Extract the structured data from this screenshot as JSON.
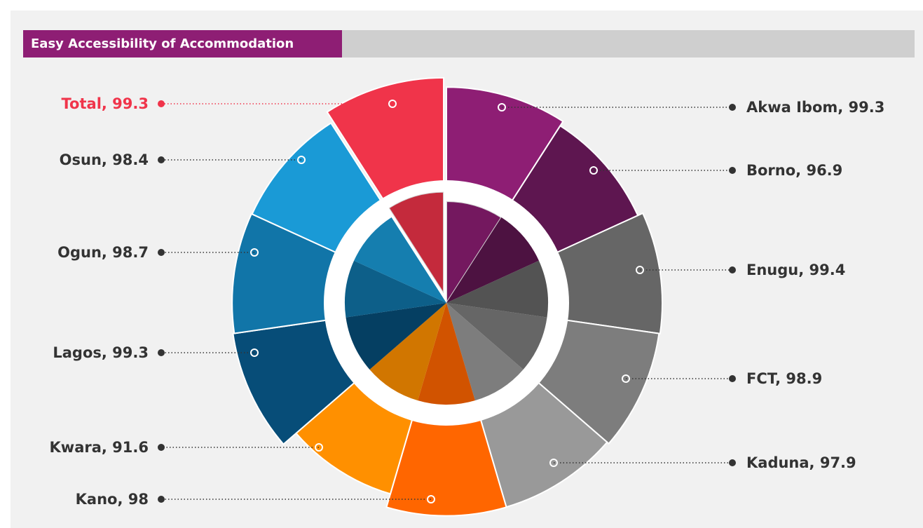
{
  "chart_data": {
    "type": "pie",
    "title": "Easy Accessibility of Accommodation",
    "values": [
      99.3,
      96.9,
      99.4,
      98.9,
      97.9,
      98,
      91.6,
      99.3,
      98.7,
      98.4,
      99.3
    ],
    "value_labels": [
      "Akwa Ibom, 99.3",
      "Borno, 96.9",
      "Enugu, 99.4",
      "FCT, 98.9",
      "Kaduna, 97.9",
      "Kano, 98",
      "Kwara, 91.6",
      "Lagos, 99.3",
      "Ogun, 98.7",
      "Osun, 98.4",
      "Total, 99.3"
    ],
    "colors": [
      "#8e1e74",
      "#5e1650",
      "#666666",
      "#7d7d7d",
      "#999999",
      "#ff6600",
      "#ff9000",
      "#074d78",
      "#1175a8",
      "#1a9ad6",
      "#f0344a"
    ],
    "label_colors": [
      "#333333",
      "#333333",
      "#333333",
      "#333333",
      "#333333",
      "#333333",
      "#333333",
      "#333333",
      "#333333",
      "#333333",
      "#f0344a"
    ]
  }
}
